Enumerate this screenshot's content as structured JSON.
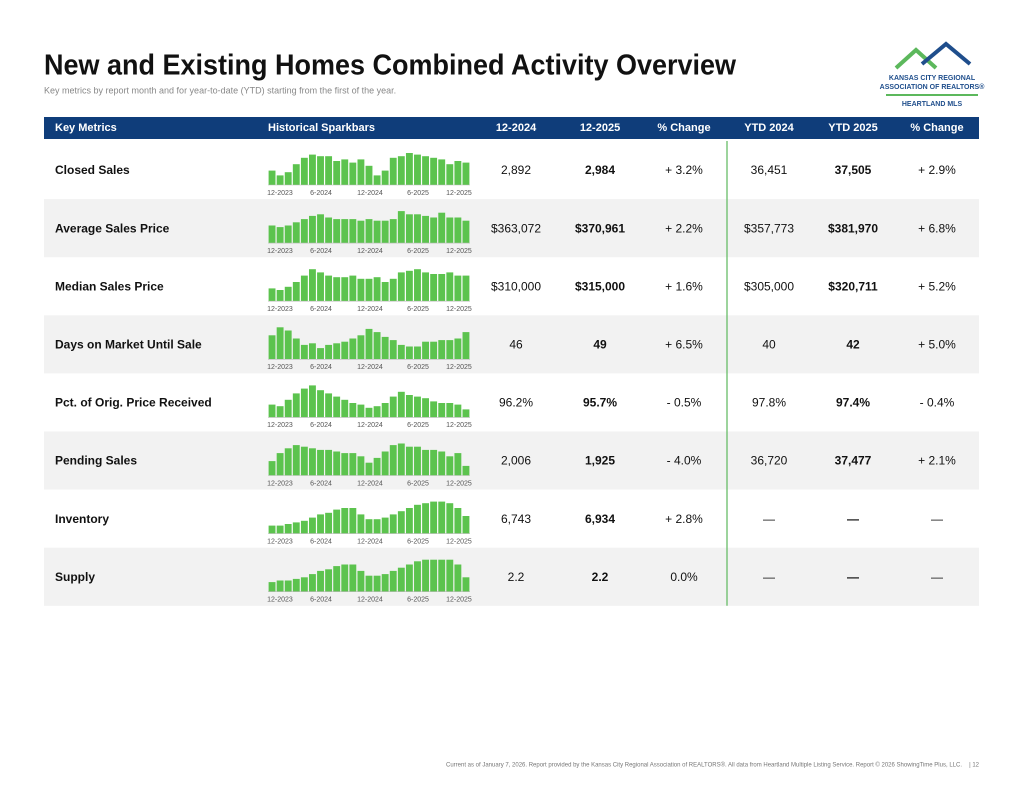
{
  "header": {
    "title": "New and Existing Homes Combined Activity Overview",
    "subtitle": "Key metrics by report month and for year-to-date (YTD) starting from the first of the year."
  },
  "logo": {
    "line1": "KANSAS CITY REGIONAL",
    "line2": "ASSOCIATION OF REALTORS®",
    "line3": "HEARTLAND MLS"
  },
  "table": {
    "columns": [
      "Key Metrics",
      "Historical Sparkbars",
      "12-2024",
      "12-2025",
      "% Change",
      "YTD 2024",
      "YTD 2025",
      "% Change"
    ],
    "sparkbar_labels": [
      "12-2023",
      "6-2024",
      "12-2024",
      "6-2025",
      "12-2025"
    ],
    "rows": [
      {
        "metric": "Closed Sales",
        "sparkbars": [
          45,
          30,
          40,
          65,
          85,
          95,
          90,
          90,
          75,
          80,
          70,
          80,
          60,
          30,
          45,
          85,
          90,
          100,
          95,
          90,
          85,
          80,
          65,
          75,
          70
        ],
        "cells": [
          "2,892",
          "2,984",
          "+ 3.2%",
          "36,451",
          "37,505",
          "+ 2.9%"
        ]
      },
      {
        "metric": "Average Sales Price",
        "sparkbars": [
          55,
          50,
          55,
          65,
          75,
          85,
          90,
          80,
          75,
          75,
          75,
          70,
          75,
          70,
          70,
          75,
          100,
          90,
          90,
          85,
          80,
          95,
          80,
          80,
          70
        ],
        "cells": [
          "$363,072",
          "$370,961",
          "+ 2.2%",
          "$357,773",
          "$381,970",
          "+ 6.8%"
        ]
      },
      {
        "metric": "Median Sales Price",
        "sparkbars": [
          40,
          35,
          45,
          60,
          80,
          100,
          90,
          80,
          75,
          75,
          80,
          70,
          70,
          75,
          60,
          70,
          90,
          95,
          100,
          90,
          85,
          85,
          90,
          80,
          80
        ],
        "cells": [
          "$310,000",
          "$315,000",
          "+ 1.6%",
          "$305,000",
          "$320,711",
          "+ 5.2%"
        ]
      },
      {
        "metric": "Days on Market Until Sale",
        "sparkbars": [
          75,
          100,
          90,
          65,
          45,
          50,
          35,
          45,
          50,
          55,
          65,
          75,
          95,
          85,
          70,
          60,
          45,
          40,
          40,
          55,
          55,
          60,
          60,
          65,
          85
        ],
        "cells": [
          "46",
          "49",
          "+ 6.5%",
          "40",
          "42",
          "+ 5.0%"
        ]
      },
      {
        "metric": "Pct. of Orig. Price Received",
        "sparkbars": [
          40,
          35,
          55,
          75,
          90,
          100,
          85,
          75,
          65,
          55,
          45,
          40,
          30,
          35,
          45,
          65,
          80,
          70,
          65,
          60,
          50,
          45,
          45,
          40,
          25
        ],
        "cells": [
          "96.2%",
          "95.7%",
          "- 0.5%",
          "97.8%",
          "97.4%",
          "- 0.4%"
        ]
      },
      {
        "metric": "Pending Sales",
        "sparkbars": [
          45,
          70,
          85,
          95,
          90,
          85,
          80,
          80,
          75,
          70,
          70,
          60,
          40,
          55,
          75,
          95,
          100,
          90,
          90,
          80,
          80,
          75,
          60,
          70,
          30
        ],
        "cells": [
          "2,006",
          "1,925",
          "- 4.0%",
          "36,720",
          "37,477",
          "+ 2.1%"
        ]
      },
      {
        "metric": "Inventory",
        "sparkbars": [
          25,
          25,
          30,
          35,
          40,
          50,
          60,
          65,
          75,
          80,
          80,
          60,
          45,
          45,
          50,
          60,
          70,
          80,
          90,
          95,
          100,
          100,
          95,
          80,
          55
        ],
        "cells": [
          "6,743",
          "6,934",
          "+ 2.8%",
          "—",
          "—",
          "—"
        ]
      },
      {
        "metric": "Supply",
        "sparkbars": [
          30,
          35,
          35,
          40,
          45,
          55,
          65,
          70,
          80,
          85,
          85,
          65,
          50,
          50,
          55,
          65,
          75,
          85,
          95,
          100,
          100,
          100,
          100,
          85,
          45
        ],
        "cells": [
          "2.2",
          "2.2",
          "0.0%",
          "—",
          "—",
          "—"
        ]
      }
    ]
  },
  "footer": {
    "text": "Current as of January 7, 2026. Report provided by the Kansas City Regional Association of REALTORS®. All data from Heartland Multiple Listing Service. Report © 2026 ShowingTime Plus, LLC.",
    "page": "| 12"
  }
}
